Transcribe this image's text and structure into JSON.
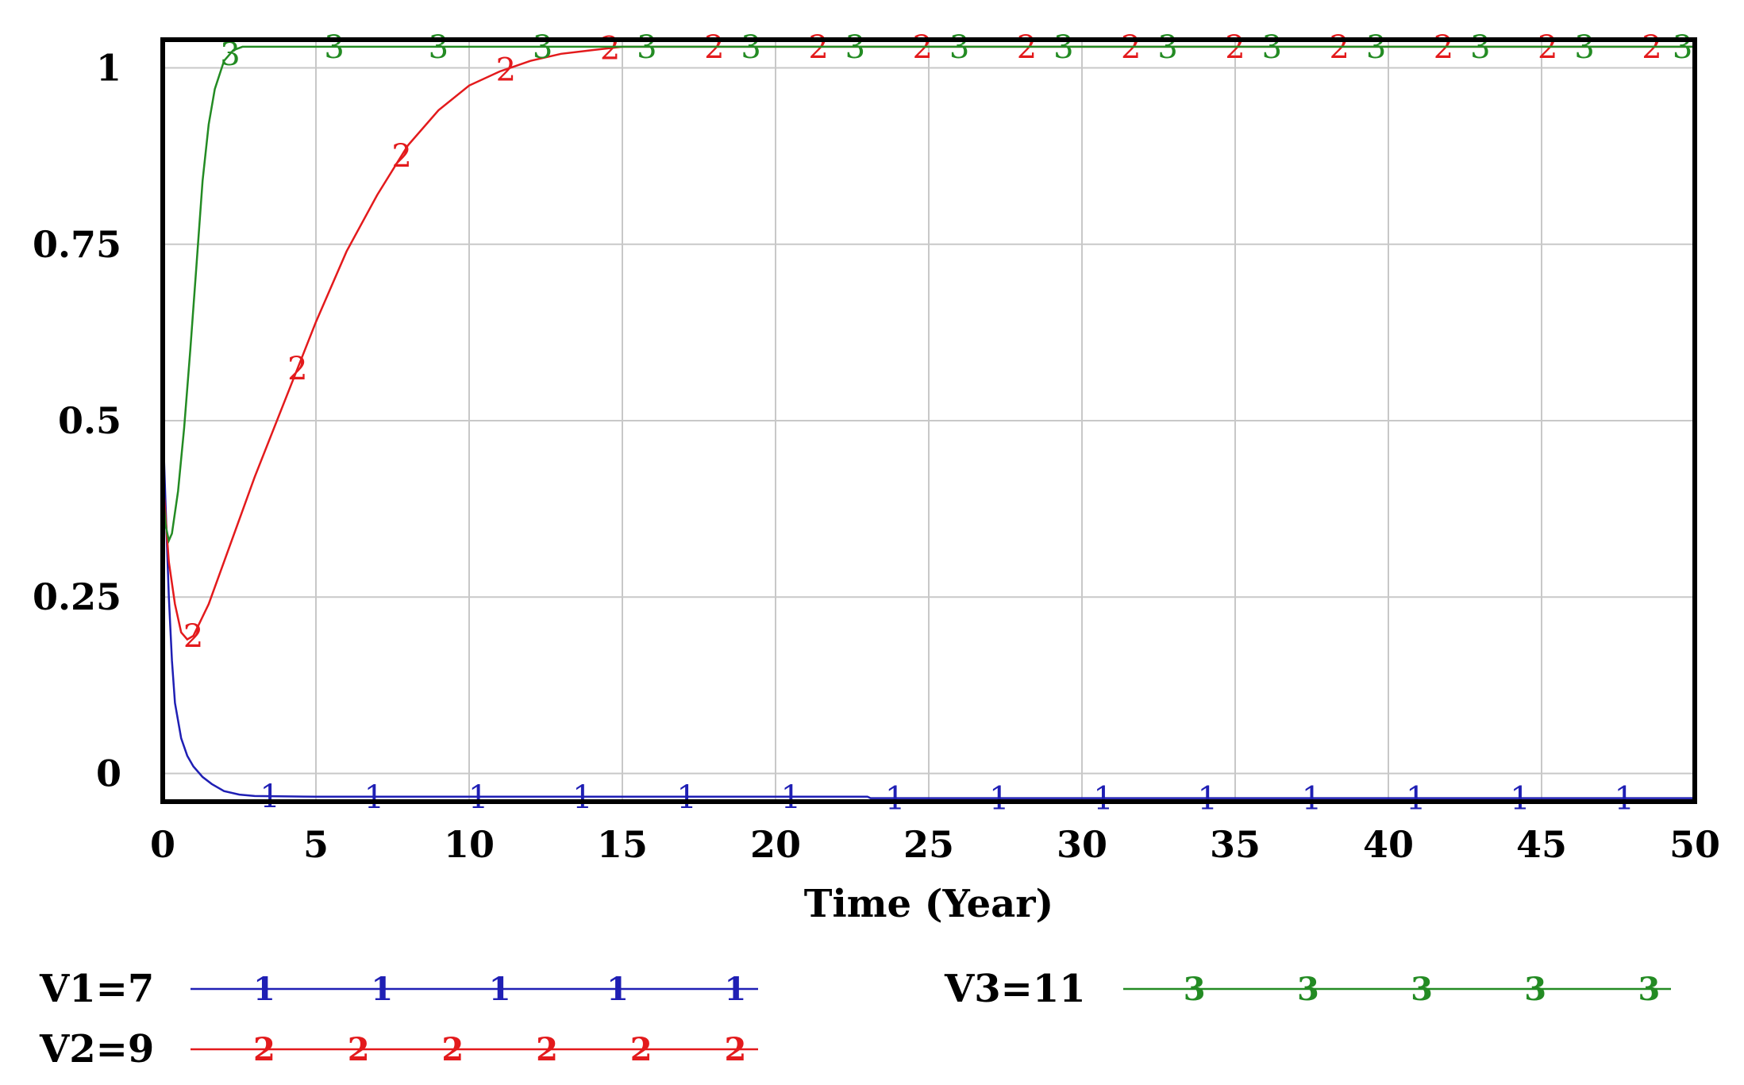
{
  "chart_data": {
    "type": "line",
    "xlabel": "Time (Year)",
    "ylabel": "",
    "xlim": [
      0,
      50
    ],
    "ylim": [
      -0.04,
      1.04
    ],
    "x_ticks": [
      0,
      5,
      10,
      15,
      20,
      25,
      30,
      35,
      40,
      45,
      50
    ],
    "x_tick_labels": [
      "0",
      "5",
      "10",
      "15",
      "20",
      "25",
      "30",
      "35",
      "40",
      "45",
      "50"
    ],
    "y_ticks": [
      0,
      0.25,
      0.5,
      0.75,
      1
    ],
    "y_tick_labels": [
      "0",
      "0.25",
      "0.5",
      "0.75",
      "1"
    ],
    "grid": true,
    "legend_position": "bottom",
    "series": [
      {
        "name": "V1=7",
        "marker": "1",
        "color": "#1f1fb4",
        "x": [
          0,
          0.1,
          0.2,
          0.3,
          0.4,
          0.6,
          0.8,
          1.0,
          1.3,
          1.6,
          2.0,
          2.5,
          3,
          5,
          10,
          15,
          20,
          23,
          23.1,
          30,
          40,
          50
        ],
        "y": [
          0.5,
          0.37,
          0.25,
          0.16,
          0.1,
          0.05,
          0.025,
          0.01,
          -0.005,
          -0.015,
          -0.025,
          -0.03,
          -0.032,
          -0.033,
          -0.033,
          -0.033,
          -0.033,
          -0.033,
          -0.035,
          -0.035,
          -0.035,
          -0.035
        ]
      },
      {
        "name": "V2=9",
        "marker": "2",
        "color": "#e31a1c",
        "x": [
          0,
          0.2,
          0.4,
          0.6,
          0.8,
          1.0,
          1.5,
          2,
          3,
          4,
          5,
          6,
          7,
          8,
          9,
          10,
          11,
          12,
          13,
          14,
          15,
          20,
          30,
          40,
          50
        ],
        "y": [
          0.42,
          0.3,
          0.24,
          0.2,
          0.19,
          0.195,
          0.24,
          0.3,
          0.42,
          0.53,
          0.64,
          0.74,
          0.82,
          0.89,
          0.94,
          0.975,
          0.995,
          1.01,
          1.02,
          1.025,
          1.03,
          1.03,
          1.03,
          1.03,
          1.03
        ]
      },
      {
        "name": "V3=11",
        "marker": "3",
        "color": "#238b23",
        "x": [
          0,
          0.1,
          0.2,
          0.3,
          0.5,
          0.7,
          0.9,
          1.1,
          1.3,
          1.5,
          1.7,
          2.0,
          2.3,
          2.6,
          3,
          5,
          10,
          20,
          30,
          40,
          50
        ],
        "y": [
          0.4,
          0.35,
          0.33,
          0.34,
          0.4,
          0.49,
          0.6,
          0.72,
          0.84,
          0.92,
          0.97,
          1.01,
          1.025,
          1.03,
          1.03,
          1.03,
          1.03,
          1.03,
          1.03,
          1.03,
          1.03
        ]
      }
    ]
  }
}
